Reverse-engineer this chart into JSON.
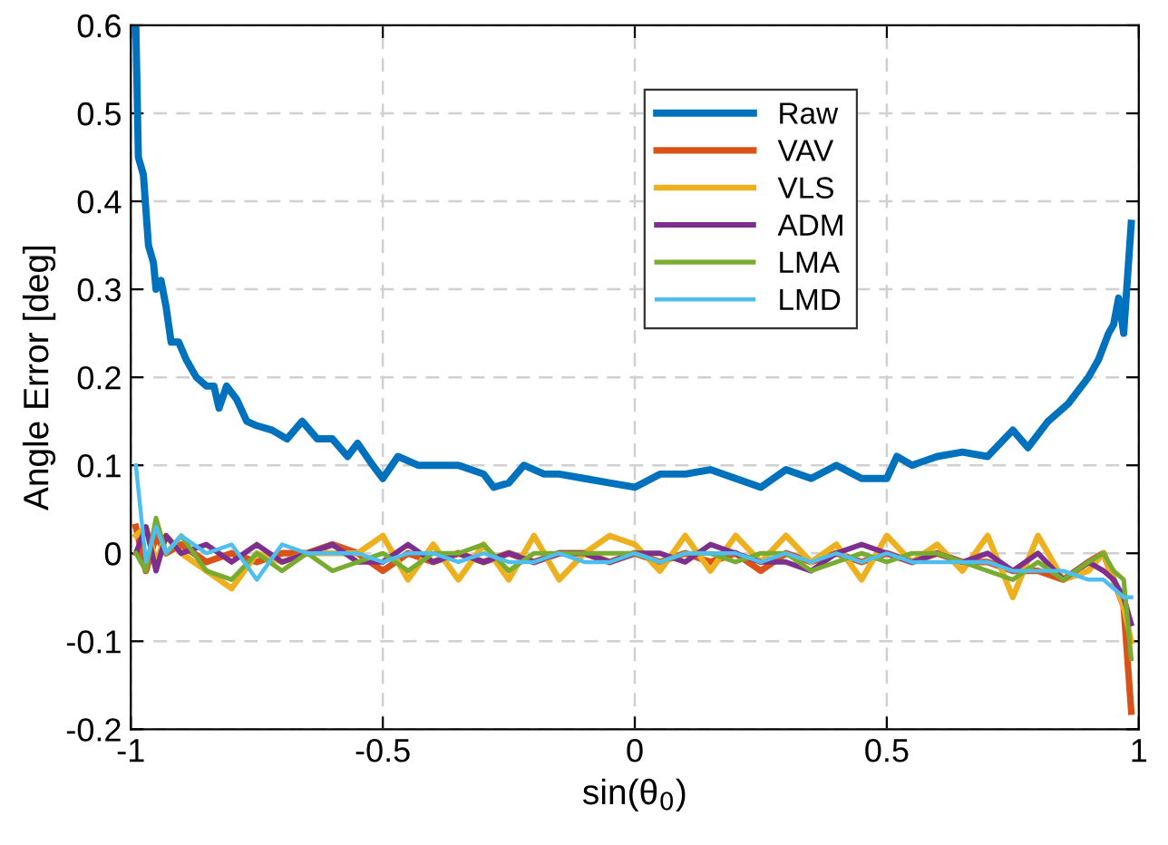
{
  "chart_data": {
    "type": "line",
    "xlabel": "sin(θ$_{0}$)",
    "ylabel": "Angle Error [deg]",
    "xlim": [
      -1,
      1
    ],
    "ylim": [
      -0.2,
      0.6
    ],
    "xticks": [
      -1,
      -0.5,
      0,
      0.5,
      1
    ],
    "yticks": [
      -0.2,
      -0.1,
      0,
      0.1,
      0.2,
      0.3,
      0.4,
      0.5,
      0.6
    ],
    "grid": true,
    "legend": "top",
    "line_style": "solid",
    "marker": "none",
    "x": [
      -0.99,
      -0.97,
      -0.95,
      -0.93,
      -0.9,
      -0.85,
      -0.8,
      -0.75,
      -0.7,
      -0.65,
      -0.6,
      -0.55,
      -0.5,
      -0.45,
      -0.4,
      -0.35,
      -0.3,
      -0.25,
      -0.2,
      -0.15,
      -0.1,
      -0.05,
      0,
      0.05,
      0.1,
      0.15,
      0.2,
      0.25,
      0.3,
      0.35,
      0.4,
      0.45,
      0.5,
      0.55,
      0.6,
      0.65,
      0.7,
      0.75,
      0.8,
      0.85,
      0.9,
      0.93,
      0.95,
      0.97,
      0.985
    ],
    "series": [
      {
        "name": "Raw",
        "color": "#0072bd",
        "x": [
          -0.99,
          -0.985,
          -0.975,
          -0.965,
          -0.955,
          -0.95,
          -0.94,
          -0.93,
          -0.92,
          -0.905,
          -0.89,
          -0.87,
          -0.85,
          -0.835,
          -0.825,
          -0.81,
          -0.79,
          -0.77,
          -0.75,
          -0.72,
          -0.69,
          -0.66,
          -0.63,
          -0.6,
          -0.57,
          -0.55,
          -0.52,
          -0.5,
          -0.47,
          -0.43,
          -0.4,
          -0.35,
          -0.3,
          -0.28,
          -0.25,
          -0.22,
          -0.18,
          -0.15,
          -0.1,
          -0.05,
          0,
          0.05,
          0.1,
          0.15,
          0.2,
          0.25,
          0.3,
          0.35,
          0.4,
          0.45,
          0.5,
          0.52,
          0.55,
          0.6,
          0.65,
          0.7,
          0.75,
          0.78,
          0.82,
          0.86,
          0.9,
          0.92,
          0.94,
          0.95,
          0.96,
          0.97,
          0.985
        ],
        "values": [
          0.6,
          0.45,
          0.43,
          0.35,
          0.33,
          0.3,
          0.31,
          0.28,
          0.24,
          0.24,
          0.22,
          0.2,
          0.19,
          0.19,
          0.165,
          0.19,
          0.175,
          0.15,
          0.145,
          0.14,
          0.13,
          0.15,
          0.13,
          0.13,
          0.11,
          0.125,
          0.1,
          0.085,
          0.11,
          0.1,
          0.1,
          0.1,
          0.09,
          0.075,
          0.08,
          0.1,
          0.09,
          0.09,
          0.085,
          0.08,
          0.075,
          0.09,
          0.09,
          0.095,
          0.085,
          0.075,
          0.095,
          0.085,
          0.1,
          0.085,
          0.085,
          0.11,
          0.1,
          0.11,
          0.115,
          0.11,
          0.14,
          0.12,
          0.15,
          0.17,
          0.2,
          0.22,
          0.25,
          0.26,
          0.29,
          0.25,
          0.375
        ]
      },
      {
        "name": "VAV",
        "color": "#d95319",
        "values": [
          0.03,
          -0.02,
          0.02,
          0.0,
          0.01,
          -0.01,
          0.0,
          -0.01,
          0.0,
          0.0,
          0.01,
          0.0,
          -0.02,
          0.0,
          -0.01,
          0.0,
          -0.01,
          0.0,
          -0.01,
          0.0,
          0.0,
          -0.01,
          0.0,
          -0.01,
          0.0,
          -0.01,
          0.0,
          -0.02,
          0.0,
          -0.01,
          0.0,
          -0.01,
          0.0,
          -0.01,
          0.0,
          -0.01,
          -0.01,
          -0.02,
          -0.02,
          -0.03,
          -0.01,
          0.0,
          -0.03,
          -0.06,
          -0.18
        ]
      },
      {
        "name": "VLS",
        "color": "#edb120",
        "values": [
          0.02,
          0.03,
          -0.01,
          0.02,
          0.0,
          -0.02,
          -0.04,
          0.0,
          -0.01,
          0.0,
          0.0,
          0.0,
          0.02,
          -0.03,
          0.01,
          -0.03,
          0.01,
          -0.03,
          0.02,
          -0.03,
          0.0,
          0.02,
          0.01,
          -0.02,
          0.02,
          -0.02,
          0.02,
          -0.01,
          0.02,
          -0.01,
          0.01,
          -0.03,
          0.02,
          -0.01,
          0.01,
          -0.02,
          0.02,
          -0.05,
          0.02,
          -0.03,
          -0.02,
          0.0,
          -0.03,
          -0.06,
          -0.1
        ]
      },
      {
        "name": "ADM",
        "color": "#7e2f8e",
        "values": [
          0.0,
          0.03,
          -0.02,
          0.02,
          0.0,
          0.01,
          -0.01,
          0.01,
          -0.01,
          0.0,
          0.01,
          -0.01,
          -0.01,
          0.01,
          -0.01,
          0.0,
          -0.01,
          0.0,
          -0.01,
          0.0,
          0.0,
          -0.01,
          0.0,
          0.0,
          -0.01,
          0.01,
          0.0,
          -0.01,
          -0.01,
          -0.02,
          0.0,
          0.01,
          0.0,
          -0.01,
          0.0,
          -0.01,
          0.0,
          -0.02,
          0.0,
          -0.03,
          -0.01,
          -0.02,
          -0.03,
          -0.05,
          -0.08
        ]
      },
      {
        "name": "LMA",
        "color": "#77ac30",
        "values": [
          0.0,
          -0.02,
          0.04,
          0.0,
          0.02,
          -0.02,
          -0.03,
          0.0,
          -0.02,
          0.0,
          -0.02,
          -0.01,
          0.0,
          -0.02,
          0.0,
          0.0,
          0.01,
          -0.02,
          0.0,
          0.0,
          0.0,
          0.0,
          0.0,
          -0.01,
          0.0,
          0.0,
          -0.01,
          0.0,
          0.0,
          -0.02,
          -0.01,
          0.0,
          -0.01,
          0.0,
          0.0,
          -0.01,
          -0.02,
          -0.03,
          -0.01,
          -0.03,
          -0.01,
          0.0,
          -0.02,
          -0.03,
          -0.12
        ]
      },
      {
        "name": "LMD",
        "color": "#4dbeee",
        "values": [
          0.1,
          -0.01,
          0.03,
          0.0,
          0.02,
          0.0,
          0.01,
          -0.03,
          0.01,
          0.0,
          0.0,
          0.0,
          -0.01,
          0.0,
          0.0,
          -0.01,
          0.0,
          -0.01,
          -0.01,
          0.0,
          -0.01,
          -0.01,
          0.0,
          -0.01,
          0.0,
          0.0,
          0.0,
          -0.01,
          0.0,
          -0.01,
          0.0,
          -0.01,
          0.0,
          -0.01,
          -0.01,
          -0.01,
          -0.01,
          -0.02,
          -0.02,
          -0.02,
          -0.03,
          -0.03,
          -0.04,
          -0.05,
          -0.05
        ]
      }
    ]
  }
}
